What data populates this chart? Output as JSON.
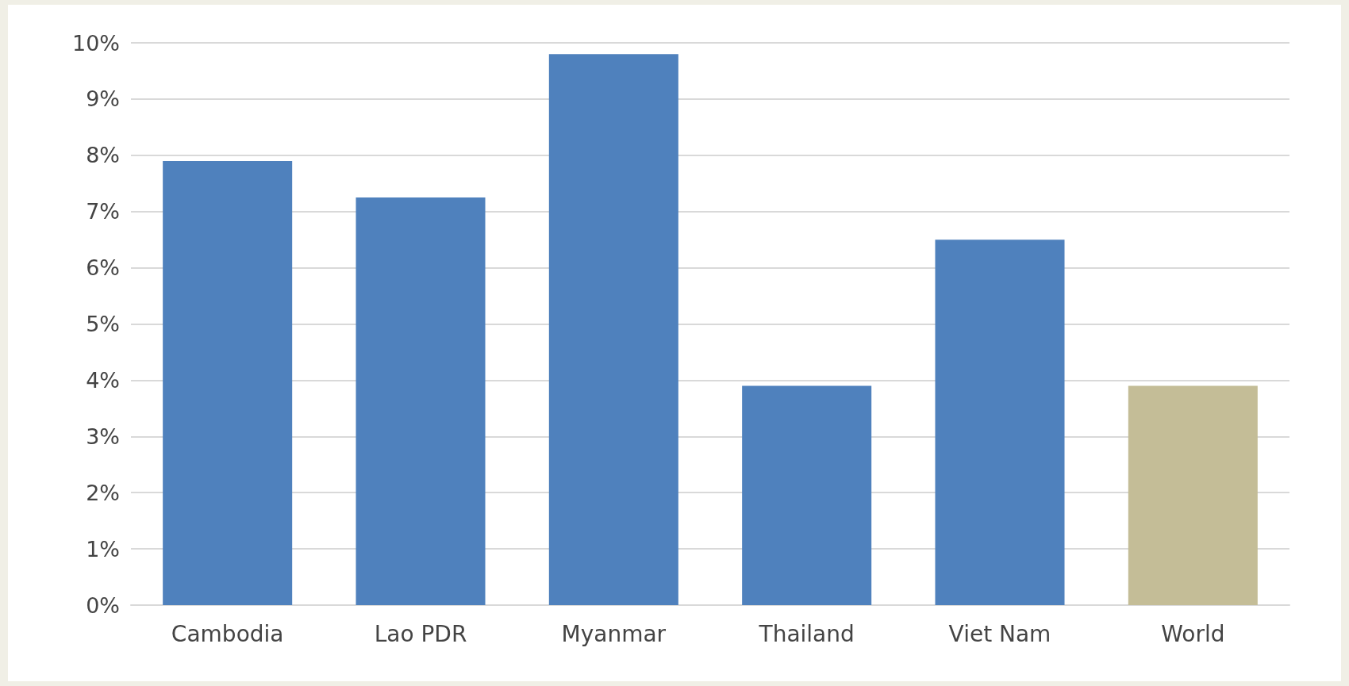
{
  "chart_data": {
    "type": "bar",
    "categories": [
      "Cambodia",
      "Lao PDR",
      "Myanmar",
      "Thailand",
      "Viet Nam",
      "World"
    ],
    "values": [
      7.9,
      7.25,
      9.8,
      3.9,
      6.5,
      3.9
    ],
    "colors": [
      "#4f81bd",
      "#4f81bd",
      "#4f81bd",
      "#4f81bd",
      "#4f81bd",
      "#c4bd97"
    ],
    "ylim": [
      0,
      10
    ],
    "yticks": [
      {
        "value": 0,
        "label": "0%"
      },
      {
        "value": 1,
        "label": "1%"
      },
      {
        "value": 2,
        "label": "2%"
      },
      {
        "value": 3,
        "label": "3%"
      },
      {
        "value": 4,
        "label": "4%"
      },
      {
        "value": 5,
        "label": "5%"
      },
      {
        "value": 6,
        "label": "6%"
      },
      {
        "value": 7,
        "label": "7%"
      },
      {
        "value": 8,
        "label": "8%"
      },
      {
        "value": 9,
        "label": "9%"
      },
      {
        "value": 10,
        "label": "10%"
      }
    ],
    "grid": true
  }
}
